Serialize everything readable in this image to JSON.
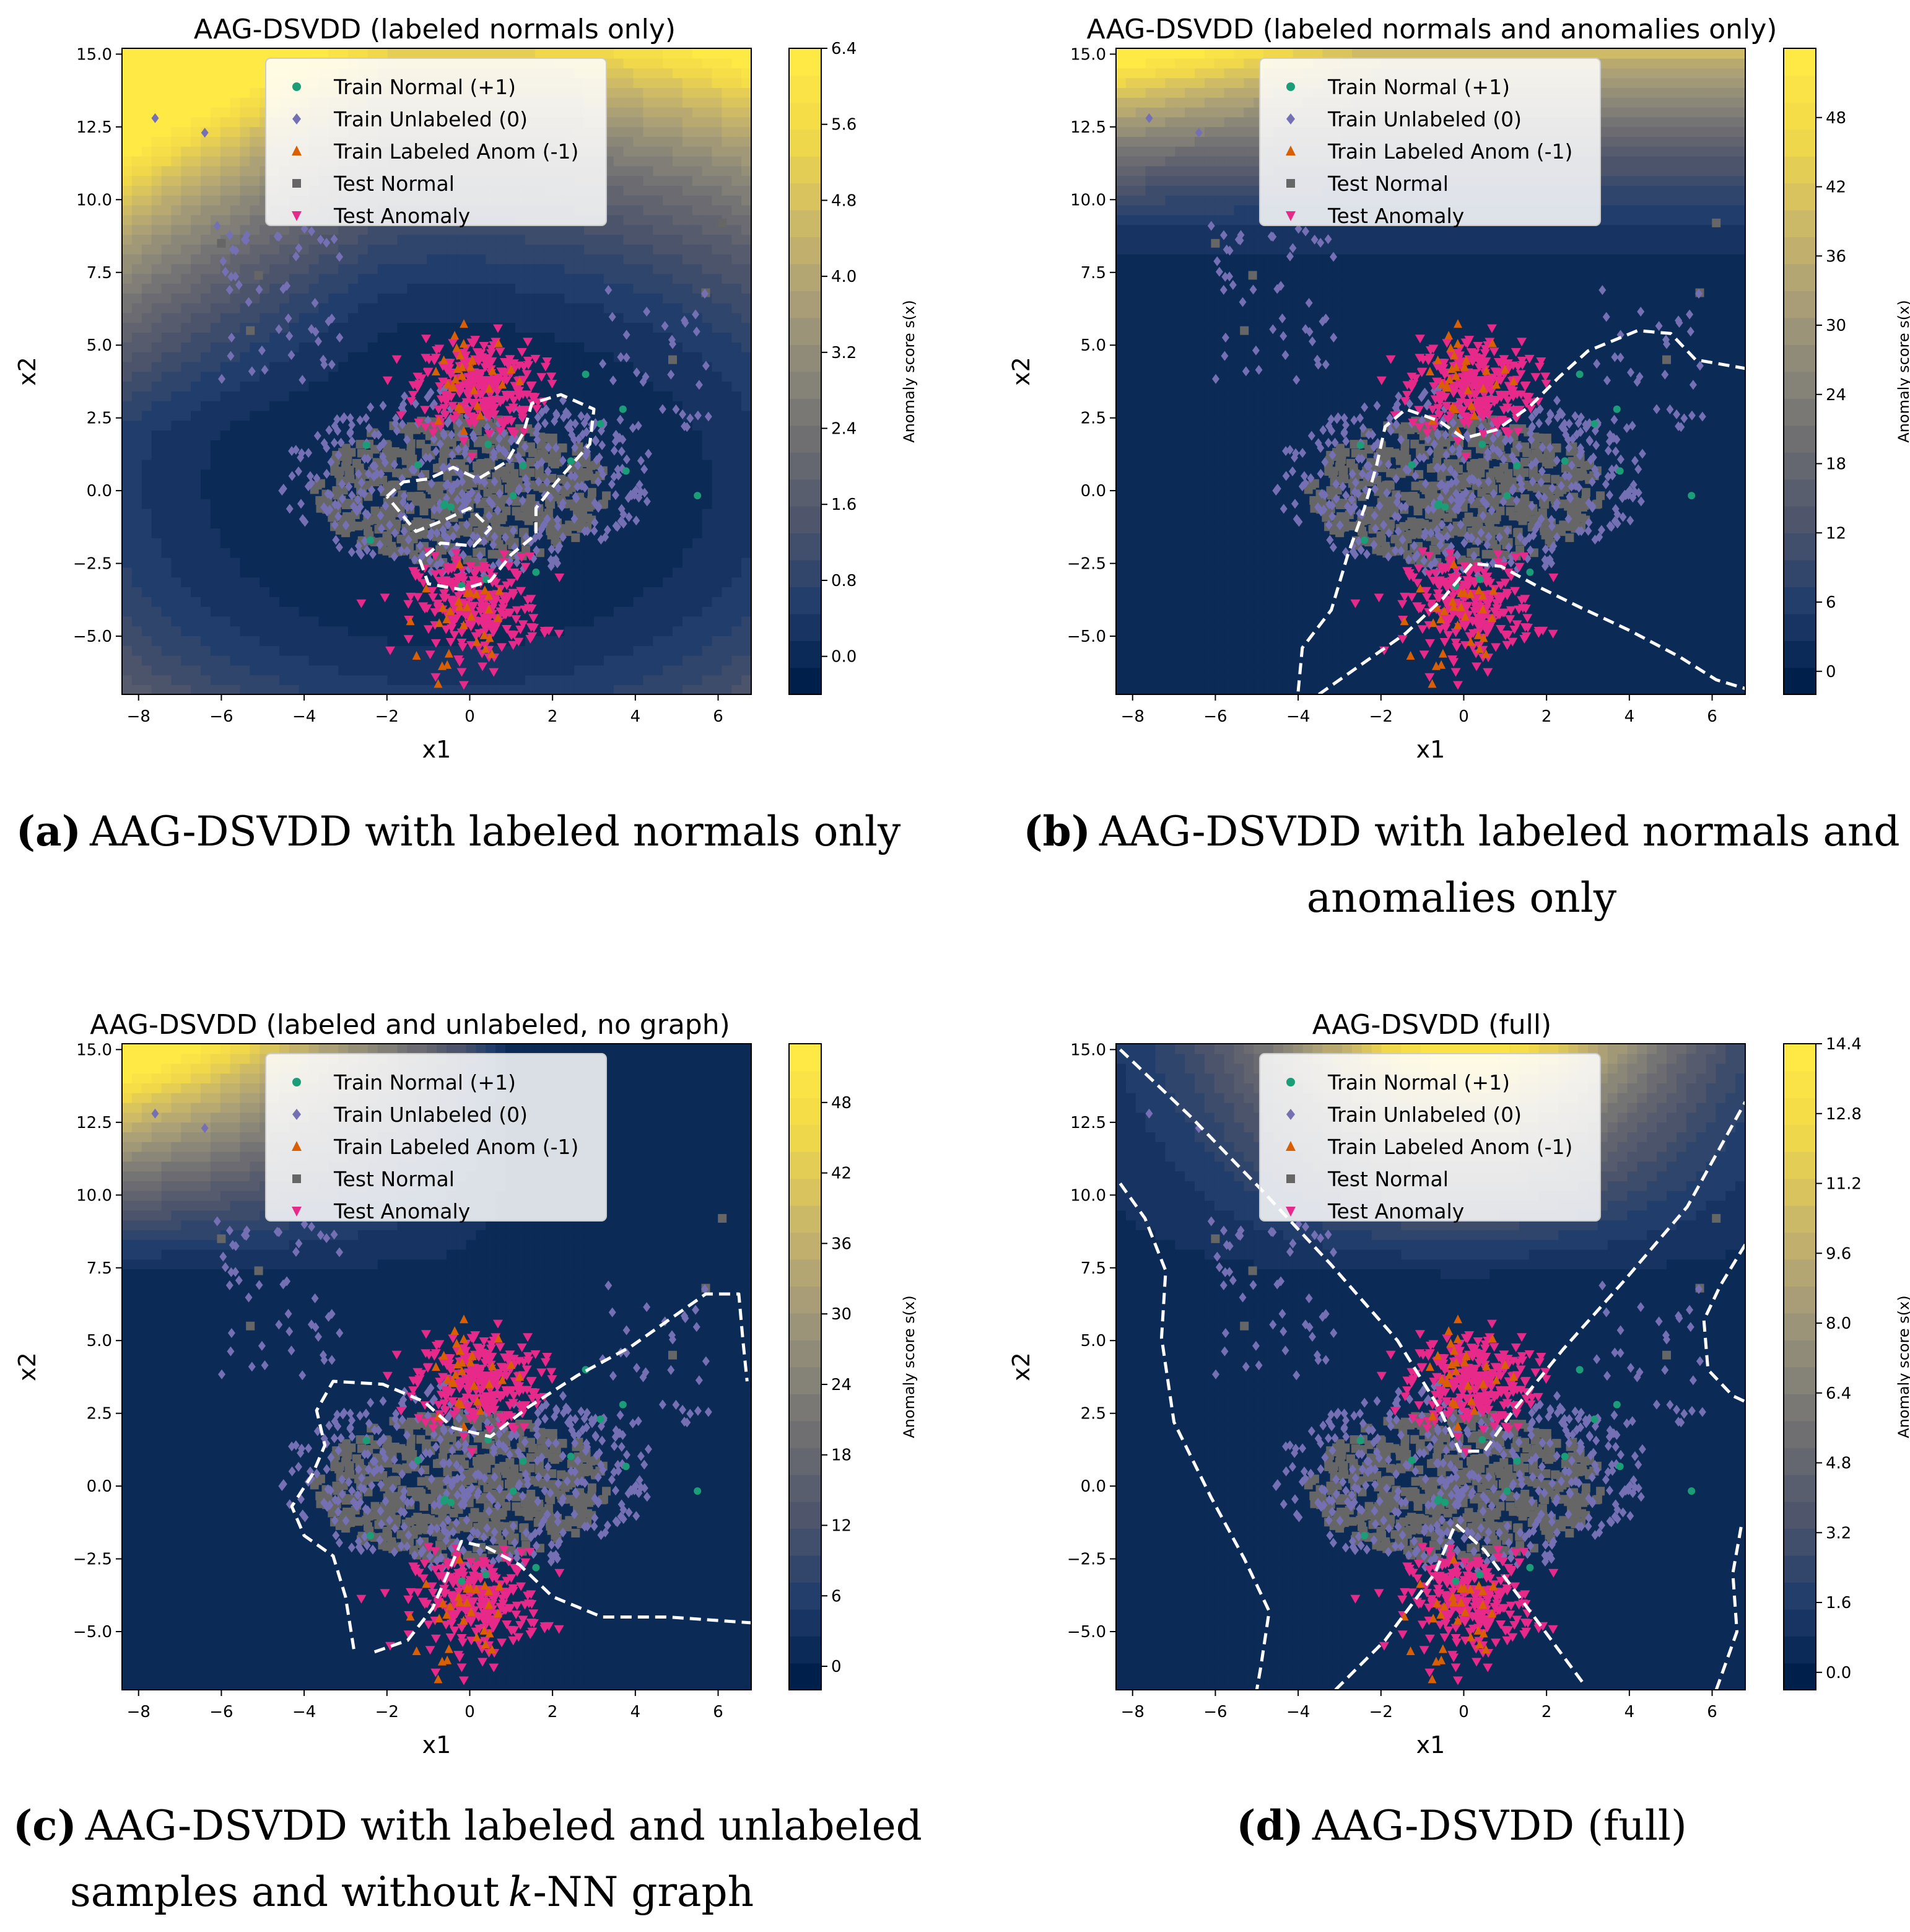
{
  "colors": {
    "train_normal": "#1b9e77",
    "train_unlabeled": "#7570b3",
    "train_labeled_anom": "#d95f02",
    "test_normal": "#666666",
    "test_anomaly": "#e7298a",
    "boundary": "#ffffff",
    "cmap_low": "#00204c",
    "cmap_mid": "#7c7b78",
    "cmap_high": "#ffe945"
  },
  "legend": {
    "train_normal": "Train Normal (+1)",
    "train_unlabeled": "Train Unlabeled (0)",
    "train_labeled_anom": "Train Labeled Anom (-1)",
    "test_normal": "Test Normal",
    "test_anomaly": "Test Anomaly"
  },
  "captions": {
    "a": {
      "label": "(a)",
      "line1": "AAG-DSVDD with labeled normals only"
    },
    "b": {
      "label": "(b)",
      "line1": "AAG-DSVDD with labeled normals and",
      "line2": "anomalies only"
    },
    "c": {
      "label": "(c)",
      "line1": "AAG-DSVDD with labeled and unlabeled",
      "line2_pre": "samples and without",
      "line2_k": "k",
      "line2_post": "-NN graph"
    },
    "d": {
      "label": "(d)",
      "line1": "AAG-DSVDD (full)"
    }
  },
  "chart_data": [
    {
      "type": "scatter",
      "title": "AAG-DSVDD (labeled normals only)",
      "xlabel": "x1",
      "ylabel": "x2",
      "xlim": [
        -8.4,
        6.8
      ],
      "ylim": [
        -7,
        15.2
      ],
      "xticks": [
        "−8",
        "−6",
        "−4",
        "−2",
        "0",
        "2",
        "4",
        "6"
      ],
      "yticks": [
        "−5.0",
        "−2.5",
        "0.0",
        "2.5",
        "5.0",
        "7.5",
        "10.0",
        "12.5",
        "15.0"
      ],
      "colorbar": {
        "label": "Anomaly score s(x)",
        "range": [
          -0.4,
          6.4
        ],
        "ticks": [
          "0.0",
          "0.8",
          "1.6",
          "2.4",
          "3.2",
          "4.0",
          "4.8",
          "5.6",
          "6.4"
        ]
      },
      "background": "score rises toward upper-left corner",
      "boundary": "closed dashed contour around central normal cluster"
    },
    {
      "type": "scatter",
      "title": "AAG-DSVDD (labeled normals and anomalies only)",
      "xlabel": "x1",
      "ylabel": "x2",
      "xlim": [
        -8.4,
        6.8
      ],
      "ylim": [
        -7,
        15.2
      ],
      "xticks": [
        "−8",
        "−6",
        "−4",
        "−2",
        "0",
        "2",
        "4",
        "6"
      ],
      "yticks": [
        "−5.0",
        "−2.5",
        "0.0",
        "2.5",
        "5.0",
        "7.5",
        "10.0",
        "12.5",
        "15.0"
      ],
      "colorbar": {
        "label": "Anomaly score s(x)",
        "range": [
          -2,
          54
        ],
        "ticks": [
          "0",
          "6",
          "12",
          "18",
          "24",
          "30",
          "36",
          "42",
          "48"
        ]
      },
      "background": "score rises toward top, peak at upper-left",
      "boundary": "open dashed contour separating anomaly clusters"
    },
    {
      "type": "scatter",
      "title": "AAG-DSVDD (labeled and unlabeled, no graph)",
      "xlabel": "x1",
      "ylabel": "x2",
      "xlim": [
        -8.4,
        6.8
      ],
      "ylim": [
        -7,
        15.2
      ],
      "xticks": [
        "−8",
        "−6",
        "−4",
        "−2",
        "0",
        "2",
        "4",
        "6"
      ],
      "yticks": [
        "−5.0",
        "−2.5",
        "0.0",
        "2.5",
        "5.0",
        "7.5",
        "10.0",
        "12.5",
        "15.0"
      ],
      "colorbar": {
        "label": "Anomaly score s(x)",
        "range": [
          -2,
          53
        ],
        "ticks": [
          "0",
          "6",
          "12",
          "18",
          "24",
          "30",
          "36",
          "42",
          "48"
        ]
      },
      "background": "score rises toward upper-left corner",
      "boundary": "dashed contour enclosing normal region with wing to the right"
    },
    {
      "type": "scatter",
      "title": "AAG-DSVDD (full)",
      "xlabel": "x1",
      "ylabel": "x2",
      "xlim": [
        -8.4,
        6.8
      ],
      "ylim": [
        -7,
        15.2
      ],
      "xticks": [
        "−8",
        "−6",
        "−4",
        "−2",
        "0",
        "2",
        "4",
        "6"
      ],
      "yticks": [
        "−5.0",
        "−2.5",
        "0.0",
        "2.5",
        "5.0",
        "7.5",
        "10.0",
        "12.5",
        "15.0"
      ],
      "colorbar": {
        "label": "Anomaly score s(x)",
        "range": [
          -0.4,
          14.4
        ],
        "ticks": [
          "0.0",
          "1.6",
          "3.2",
          "4.8",
          "6.4",
          "8.0",
          "9.6",
          "11.2",
          "12.8",
          "14.4"
        ]
      },
      "background": "score rises toward top center",
      "boundary": "X-shaped dashed contours with side curves"
    }
  ]
}
